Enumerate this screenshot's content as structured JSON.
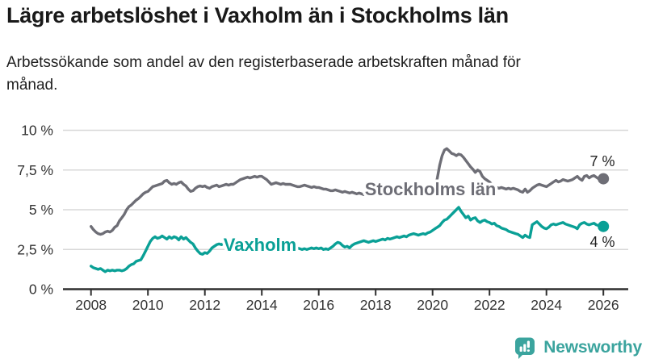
{
  "header": {
    "title": "Lägre arbetslöshet i Vaxholm än i Stockholms län",
    "subtitle": "Arbetssökande som andel av den registerbaserade arbetskraften månad för månad."
  },
  "colors": {
    "vaxholm_teal": "#0aa096",
    "stockholm_gray": "#6e6e76",
    "gridline": "#d8d8d8",
    "axis": "#2f2f2f",
    "tick_text": "#333333",
    "brand_teal": "#3ba49e"
  },
  "chart_data": {
    "type": "line",
    "x_unit": "month",
    "x_range": [
      "2008-01",
      "2026-01"
    ],
    "ylim": [
      0,
      10
    ],
    "grid": "horizontal",
    "legend_position": "inline-on-line",
    "y_ticks": [
      {
        "label": "0 %",
        "value": 0
      },
      {
        "label": "2,5 %",
        "value": 2.5
      },
      {
        "label": "5 %",
        "value": 5
      },
      {
        "label": "7,5 %",
        "value": 7.5
      },
      {
        "label": "10 %",
        "value": 10
      }
    ],
    "x_ticks": [
      {
        "label": "2008",
        "year": 2008
      },
      {
        "label": "2010",
        "year": 2010
      },
      {
        "label": "2012",
        "year": 2012
      },
      {
        "label": "2014",
        "year": 2014
      },
      {
        "label": "2016",
        "year": 2016
      },
      {
        "label": "2018",
        "year": 2018
      },
      {
        "label": "2020",
        "year": 2020
      },
      {
        "label": "2022",
        "year": 2022
      },
      {
        "label": "2024",
        "year": 2024
      },
      {
        "label": "2026",
        "year": 2026
      }
    ],
    "series": [
      {
        "name": "Stockholms län",
        "color": "#6e6e76",
        "end_label": "7 %",
        "values": [
          3.95,
          3.75,
          3.6,
          3.5,
          3.45,
          3.5,
          3.6,
          3.65,
          3.6,
          3.7,
          3.9,
          4.0,
          4.3,
          4.5,
          4.7,
          5.0,
          5.2,
          5.3,
          5.45,
          5.6,
          5.7,
          5.85,
          6.0,
          6.1,
          6.15,
          6.3,
          6.45,
          6.5,
          6.55,
          6.6,
          6.65,
          6.8,
          6.85,
          6.7,
          6.6,
          6.65,
          6.6,
          6.7,
          6.75,
          6.6,
          6.5,
          6.3,
          6.15,
          6.2,
          6.35,
          6.45,
          6.5,
          6.45,
          6.5,
          6.4,
          6.35,
          6.45,
          6.5,
          6.55,
          6.45,
          6.5,
          6.55,
          6.6,
          6.55,
          6.6,
          6.6,
          6.7,
          6.8,
          6.9,
          6.95,
          7.0,
          7.05,
          7.0,
          7.05,
          7.1,
          7.05,
          7.1,
          7.1,
          7.0,
          6.9,
          6.75,
          6.6,
          6.65,
          6.7,
          6.65,
          6.6,
          6.65,
          6.6,
          6.6,
          6.6,
          6.55,
          6.5,
          6.45,
          6.45,
          6.5,
          6.55,
          6.5,
          6.45,
          6.4,
          6.45,
          6.4,
          6.4,
          6.35,
          6.3,
          6.3,
          6.25,
          6.2,
          6.2,
          6.25,
          6.2,
          6.15,
          6.1,
          6.15,
          6.1,
          6.05,
          6.1,
          6.05,
          6.0,
          6.05,
          6.0,
          5.95,
          6.0,
          6.05,
          6.0,
          5.95,
          6.0,
          5.95,
          5.9,
          5.95,
          6.0,
          5.95,
          5.9,
          5.95,
          6.0,
          6.05,
          6.0,
          6.05,
          6.0,
          6.05,
          6.1,
          6.05,
          6.0,
          6.05,
          6.1,
          6.05,
          6.1,
          6.05,
          6.1,
          6.1,
          6.15,
          6.3,
          7.0,
          7.8,
          8.4,
          8.75,
          8.85,
          8.7,
          8.55,
          8.5,
          8.4,
          8.5,
          8.45,
          8.3,
          8.1,
          7.9,
          7.7,
          7.55,
          7.35,
          7.5,
          7.4,
          7.1,
          6.95,
          6.85,
          6.75,
          6.6,
          6.5,
          6.4,
          6.35,
          6.4,
          6.35,
          6.3,
          6.35,
          6.3,
          6.35,
          6.3,
          6.25,
          6.15,
          6.1,
          6.3,
          6.1,
          6.2,
          6.35,
          6.45,
          6.55,
          6.6,
          6.55,
          6.5,
          6.45,
          6.55,
          6.65,
          6.75,
          6.85,
          6.75,
          6.8,
          6.9,
          6.85,
          6.8,
          6.85,
          6.9,
          7.0,
          7.1,
          6.95,
          6.85,
          7.1,
          7.15,
          7.0,
          7.1,
          7.15,
          7.05,
          6.95,
          7.0,
          6.95
        ]
      },
      {
        "name": "Vaxholm",
        "color": "#0aa096",
        "end_label": "4 %",
        "values": [
          1.45,
          1.35,
          1.3,
          1.25,
          1.3,
          1.2,
          1.1,
          1.2,
          1.15,
          1.2,
          1.15,
          1.2,
          1.2,
          1.15,
          1.2,
          1.3,
          1.45,
          1.55,
          1.6,
          1.75,
          1.8,
          1.85,
          2.1,
          2.4,
          2.7,
          3.0,
          3.2,
          3.3,
          3.2,
          3.25,
          3.35,
          3.25,
          3.15,
          3.3,
          3.2,
          3.3,
          3.25,
          3.1,
          3.3,
          3.15,
          3.25,
          3.1,
          2.95,
          2.85,
          2.6,
          2.4,
          2.25,
          2.2,
          2.3,
          2.25,
          2.4,
          2.6,
          2.7,
          2.8,
          2.85,
          2.8,
          2.9,
          2.85,
          2.9,
          2.85,
          2.9,
          2.95,
          2.9,
          2.85,
          2.9,
          2.95,
          2.9,
          2.85,
          2.9,
          2.95,
          2.9,
          2.85,
          2.9,
          2.85,
          2.8,
          2.85,
          2.8,
          2.75,
          2.8,
          2.75,
          2.8,
          2.75,
          2.7,
          2.75,
          2.7,
          2.65,
          2.7,
          2.6,
          2.55,
          2.5,
          2.55,
          2.5,
          2.55,
          2.6,
          2.55,
          2.6,
          2.55,
          2.6,
          2.5,
          2.55,
          2.5,
          2.6,
          2.7,
          2.85,
          2.95,
          2.9,
          2.75,
          2.65,
          2.7,
          2.6,
          2.75,
          2.85,
          2.9,
          2.95,
          3.0,
          3.05,
          3.0,
          2.95,
          3.0,
          3.05,
          3.0,
          3.05,
          3.1,
          3.15,
          3.1,
          3.2,
          3.15,
          3.2,
          3.25,
          3.3,
          3.25,
          3.3,
          3.35,
          3.3,
          3.4,
          3.45,
          3.5,
          3.45,
          3.4,
          3.45,
          3.5,
          3.45,
          3.55,
          3.6,
          3.7,
          3.8,
          3.9,
          4.0,
          4.2,
          4.35,
          4.4,
          4.55,
          4.7,
          4.85,
          5.0,
          5.15,
          4.9,
          4.7,
          4.5,
          4.6,
          4.35,
          4.45,
          4.5,
          4.3,
          4.2,
          4.3,
          4.35,
          4.25,
          4.2,
          4.1,
          4.15,
          4.0,
          3.95,
          3.85,
          3.8,
          3.75,
          3.65,
          3.6,
          3.55,
          3.5,
          3.45,
          3.35,
          3.25,
          3.4,
          3.3,
          3.25,
          4.05,
          4.15,
          4.25,
          4.1,
          3.95,
          3.85,
          3.8,
          3.9,
          4.05,
          4.1,
          4.05,
          4.1,
          4.15,
          4.2,
          4.1,
          4.05,
          4.0,
          3.95,
          3.9,
          3.8,
          4.05,
          4.15,
          4.2,
          4.1,
          4.05,
          4.1,
          4.15,
          4.05,
          4.0,
          3.95,
          3.95
        ]
      }
    ]
  },
  "footer": {
    "brand": "Newsworthy"
  }
}
